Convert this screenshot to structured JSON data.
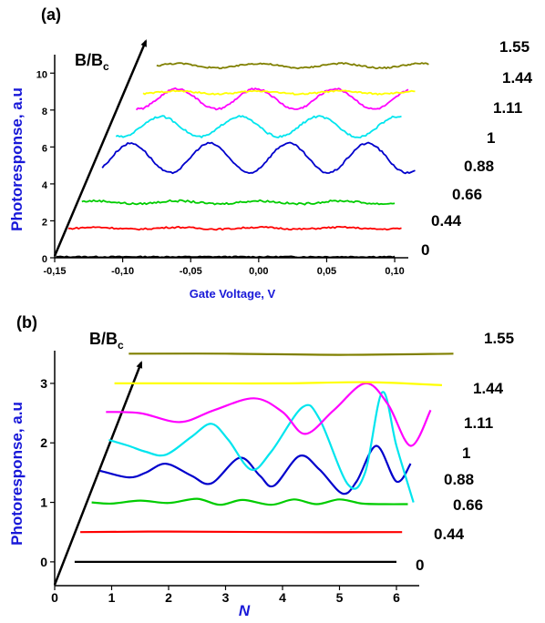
{
  "chart_data": [
    {
      "type": "line",
      "panel_label": "(a)",
      "xlabel": "Gate Voltage, V",
      "ylabel": "Photoresponse, a.u",
      "stack_label": "B/B",
      "stack_label_sub": "c",
      "xlim": [
        -0.15,
        0.11
      ],
      "ylim": [
        0,
        11
      ],
      "x_ticks": [
        "-0,15",
        "-0,10",
        "-0,05",
        "0,00",
        "0,05",
        "0,10"
      ],
      "x_tick_values": [
        -0.15,
        -0.1,
        -0.05,
        0.0,
        0.05,
        0.1
      ],
      "y_ticks": [
        "0",
        "2",
        "4",
        "6",
        "8",
        "10"
      ],
      "y_tick_values": [
        0,
        2,
        4,
        6,
        8,
        10
      ],
      "series": [
        {
          "name": "0",
          "color": "#000000",
          "x_start": -0.149,
          "x_end": 0.1,
          "base": 0.05,
          "amp": 0,
          "period": 0.06,
          "phase": 0,
          "noise": 0.03
        },
        {
          "name": "0.44",
          "color": "#ff0000",
          "x_start": -0.14,
          "x_end": 0.105,
          "base": 1.6,
          "amp": 0.05,
          "period": 0.06,
          "phase": 0,
          "noise": 0.04
        },
        {
          "name": "0.66",
          "color": "#00cc00",
          "x_start": -0.13,
          "x_end": 0.1,
          "base": 3.0,
          "amp": 0.08,
          "period": 0.06,
          "phase": 0,
          "noise": 0.05
        },
        {
          "name": "0.88",
          "color": "#0000cc",
          "x_start": -0.115,
          "x_end": 0.115,
          "base": 5.4,
          "amp": 0.8,
          "period": 0.058,
          "phase": -0.094,
          "noise": 0.05
        },
        {
          "name": "1",
          "color": "#00e5ee",
          "x_start": -0.105,
          "x_end": 0.105,
          "base": 7.1,
          "amp": 0.55,
          "period": 0.058,
          "phase": -0.072,
          "noise": 0.05
        },
        {
          "name": "1.11",
          "color": "#ff00ff",
          "x_start": -0.09,
          "x_end": 0.11,
          "base": 8.6,
          "amp": 0.55,
          "period": 0.058,
          "phase": -0.06,
          "noise": 0.05
        },
        {
          "name": "1.44",
          "color": "#ffff00",
          "x_start": -0.085,
          "x_end": 0.115,
          "base": 8.95,
          "amp": 0.08,
          "period": 0.06,
          "phase": 0,
          "noise": 0.04
        },
        {
          "name": "1.55",
          "color": "#808000",
          "x_start": -0.075,
          "x_end": 0.125,
          "base": 10.4,
          "amp": 0.12,
          "period": 0.06,
          "phase": 0,
          "noise": 0.04
        }
      ]
    },
    {
      "type": "line",
      "panel_label": "(b)",
      "xlabel": "N",
      "ylabel": "Photoresponse, a.u",
      "stack_label": "B/B",
      "stack_label_sub": "c",
      "xlim": [
        0,
        6.4
      ],
      "ylim": [
        -0.4,
        3.55
      ],
      "x_ticks": [
        "0",
        "1",
        "2",
        "3",
        "4",
        "5",
        "6"
      ],
      "x_tick_values": [
        0,
        1,
        2,
        3,
        4,
        5,
        6
      ],
      "y_ticks": [
        "0",
        "1",
        "2",
        "3"
      ],
      "y_tick_values": [
        0,
        1,
        2,
        3
      ],
      "series": [
        {
          "name": "0",
          "color": "#000000",
          "points": [
            [
              0.35,
              0.0
            ],
            [
              6.0,
              0.0
            ]
          ]
        },
        {
          "name": "0.44",
          "color": "#ff0000",
          "points": [
            [
              0.45,
              0.5
            ],
            [
              2.0,
              0.51
            ],
            [
              4.0,
              0.5
            ],
            [
              6.1,
              0.5
            ]
          ]
        },
        {
          "name": "0.66",
          "color": "#00cc00",
          "points": [
            [
              0.65,
              1.0
            ],
            [
              1.0,
              0.98
            ],
            [
              1.5,
              1.03
            ],
            [
              2.0,
              0.99
            ],
            [
              2.5,
              1.06
            ],
            [
              2.9,
              0.96
            ],
            [
              3.3,
              1.04
            ],
            [
              3.8,
              0.96
            ],
            [
              4.2,
              1.05
            ],
            [
              4.6,
              0.97
            ],
            [
              5.0,
              1.05
            ],
            [
              5.4,
              0.98
            ],
            [
              5.8,
              0.97
            ],
            [
              6.2,
              0.97
            ]
          ]
        },
        {
          "name": "0.88",
          "color": "#0000cc",
          "points": [
            [
              0.8,
              1.53
            ],
            [
              1.3,
              1.42
            ],
            [
              1.6,
              1.5
            ],
            [
              1.95,
              1.65
            ],
            [
              2.4,
              1.45
            ],
            [
              2.75,
              1.32
            ],
            [
              3.25,
              1.75
            ],
            [
              3.6,
              1.45
            ],
            [
              3.85,
              1.28
            ],
            [
              4.3,
              1.78
            ],
            [
              4.65,
              1.55
            ],
            [
              5.05,
              1.15
            ],
            [
              5.3,
              1.35
            ],
            [
              5.65,
              1.95
            ],
            [
              6.0,
              1.35
            ],
            [
              6.25,
              1.65
            ]
          ]
        },
        {
          "name": "1",
          "color": "#00e5ee",
          "points": [
            [
              0.95,
              2.05
            ],
            [
              1.3,
              1.95
            ],
            [
              1.6,
              1.85
            ],
            [
              1.95,
              1.8
            ],
            [
              2.4,
              2.1
            ],
            [
              2.75,
              2.32
            ],
            [
              3.05,
              2.05
            ],
            [
              3.45,
              1.55
            ],
            [
              3.8,
              1.85
            ],
            [
              4.35,
              2.6
            ],
            [
              4.65,
              2.4
            ],
            [
              5.15,
              1.3
            ],
            [
              5.45,
              1.5
            ],
            [
              5.75,
              2.85
            ],
            [
              6.0,
              1.95
            ],
            [
              6.3,
              1.0
            ]
          ]
        },
        {
          "name": "1.11",
          "color": "#ff00ff",
          "points": [
            [
              0.9,
              2.52
            ],
            [
              1.5,
              2.5
            ],
            [
              2.2,
              2.35
            ],
            [
              2.8,
              2.55
            ],
            [
              3.5,
              2.75
            ],
            [
              4.0,
              2.52
            ],
            [
              4.4,
              2.15
            ],
            [
              4.9,
              2.55
            ],
            [
              5.45,
              3.0
            ],
            [
              5.85,
              2.65
            ],
            [
              6.25,
              1.95
            ],
            [
              6.6,
              2.55
            ]
          ]
        },
        {
          "name": "1.44",
          "color": "#ffff00",
          "points": [
            [
              1.05,
              3.0
            ],
            [
              2.5,
              3.0
            ],
            [
              4.0,
              3.0
            ],
            [
              5.5,
              3.02
            ],
            [
              6.8,
              2.97
            ]
          ]
        },
        {
          "name": "1.55",
          "color": "#808000",
          "points": [
            [
              1.3,
              3.5
            ],
            [
              3.0,
              3.5
            ],
            [
              5.0,
              3.48
            ],
            [
              7.0,
              3.5
            ]
          ]
        }
      ]
    }
  ]
}
